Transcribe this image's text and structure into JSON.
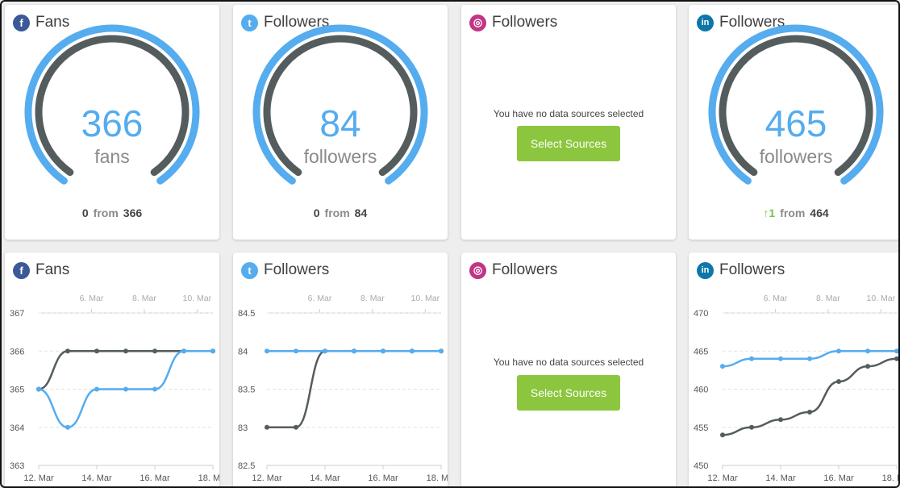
{
  "cards_top": [
    {
      "network": "facebook",
      "icon": "facebook-icon",
      "title": "Fans",
      "value": "366",
      "unit": "fans",
      "delta": "0",
      "from_label": "from",
      "from_value": "366",
      "gauge_fraction": 1.0,
      "empty": false
    },
    {
      "network": "twitter",
      "icon": "twitter-icon",
      "title": "Followers",
      "value": "84",
      "unit": "followers",
      "delta": "0",
      "from_label": "from",
      "from_value": "84",
      "gauge_fraction": 1.0,
      "empty": false
    },
    {
      "network": "instagram",
      "icon": "instagram-icon",
      "title": "Followers",
      "empty": true,
      "message": "You have no data sources selected",
      "button": "Select Sources"
    },
    {
      "network": "linkedin",
      "icon": "linkedin-icon",
      "title": "Followers",
      "value": "465",
      "unit": "followers",
      "delta": "↑1",
      "from_label": "from",
      "from_value": "464",
      "gauge_fraction": 1.0,
      "empty": false
    }
  ],
  "icon_letters": {
    "facebook": "f",
    "twitter": "t",
    "instagram": "◎",
    "linkedin": "in"
  },
  "colors": {
    "accent": "#55acee",
    "dark": "#555c5e",
    "button": "#8cc63e",
    "up": "#7bc043"
  },
  "cards_bottom": [
    {
      "network": "facebook",
      "title": "Fans",
      "empty": false,
      "chart_data": {
        "type": "line",
        "top_ticks": [
          "6. Mar",
          "8. Mar",
          "10. Mar"
        ],
        "top_ticks_x": [
          6,
          8,
          10
        ],
        "x_ticks": [
          "12. Mar",
          "14. Mar",
          "16. Mar",
          "18. M..."
        ],
        "x_ticks_x": [
          12,
          14,
          16,
          18
        ],
        "y_ticks": [
          "363",
          "364",
          "365",
          "366",
          "367"
        ],
        "ylim": [
          363,
          367
        ],
        "xlim": [
          12,
          18
        ],
        "series": [
          {
            "color": "#555c5e",
            "x": [
              12,
              13,
              14,
              15,
              16,
              17,
              18
            ],
            "y": [
              365,
              366,
              366,
              366,
              366,
              366,
              366
            ]
          },
          {
            "color": "#55acee",
            "x": [
              12,
              13,
              14,
              15,
              16,
              17,
              18
            ],
            "y": [
              365,
              364,
              365,
              365,
              365,
              366,
              366
            ]
          }
        ]
      }
    },
    {
      "network": "twitter",
      "title": "Followers",
      "empty": false,
      "chart_data": {
        "type": "line",
        "top_ticks": [
          "6. Mar",
          "8. Mar",
          "10. Mar"
        ],
        "top_ticks_x": [
          6,
          8,
          10
        ],
        "x_ticks": [
          "12. Mar",
          "14. Mar",
          "16. Mar",
          "18. M..."
        ],
        "x_ticks_x": [
          12,
          14,
          16,
          18
        ],
        "y_ticks": [
          "82.5",
          "83",
          "83.5",
          "84",
          "84.5"
        ],
        "ylim": [
          82.5,
          84.5
        ],
        "xlim": [
          12,
          18
        ],
        "series": [
          {
            "color": "#555c5e",
            "x": [
              12,
              13,
              14,
              15,
              16,
              17,
              18
            ],
            "y": [
              83,
              83,
              84,
              84,
              84,
              84,
              84
            ]
          },
          {
            "color": "#55acee",
            "x": [
              12,
              13,
              14,
              15,
              16,
              17,
              18
            ],
            "y": [
              84,
              84,
              84,
              84,
              84,
              84,
              84
            ]
          }
        ]
      }
    },
    {
      "network": "instagram",
      "title": "Followers",
      "empty": true,
      "message": "You have no data sources selected",
      "button": "Select Sources"
    },
    {
      "network": "linkedin",
      "title": "Followers",
      "empty": false,
      "chart_data": {
        "type": "line",
        "top_ticks": [
          "6. Mar",
          "8. Mar",
          "10. Mar"
        ],
        "top_ticks_x": [
          6,
          8,
          10
        ],
        "x_ticks": [
          "12. Mar",
          "14. Mar",
          "16. Mar",
          "18. M..."
        ],
        "x_ticks_x": [
          12,
          14,
          16,
          18
        ],
        "y_ticks": [
          "450",
          "455",
          "460",
          "465",
          "470"
        ],
        "ylim": [
          450,
          470
        ],
        "xlim": [
          12,
          18
        ],
        "series": [
          {
            "color": "#555c5e",
            "x": [
              12,
              13,
              14,
              15,
              16,
              17,
              18
            ],
            "y": [
              454,
              455,
              456,
              457,
              461,
              463,
              464
            ]
          },
          {
            "color": "#55acee",
            "x": [
              12,
              13,
              14,
              15,
              16,
              17,
              18
            ],
            "y": [
              463,
              464,
              464,
              464,
              465,
              465,
              465
            ]
          }
        ]
      }
    }
  ]
}
